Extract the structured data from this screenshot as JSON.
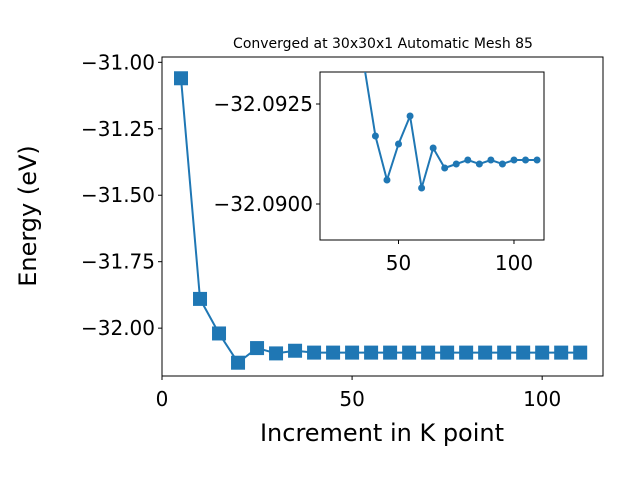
{
  "chart_data": [
    {
      "type": "line",
      "title": "Converged at 30x30x1 Automatic Mesh 85",
      "xlabel": "Increment in K point",
      "ylabel": "Energy (eV)",
      "xlim": [
        0,
        116
      ],
      "ylim": [
        -32.18,
        -30.98
      ],
      "xticks": [
        0,
        50,
        100
      ],
      "xtick_labels": [
        "0",
        "50",
        "100"
      ],
      "yticks": [
        -31.0,
        -31.25,
        -31.5,
        -31.75,
        -32.0
      ],
      "ytick_labels": [
        "−31.00",
        "−31.25",
        "−31.50",
        "−31.75",
        "−32.00"
      ],
      "grid": false,
      "marker": "square",
      "color": "#1f77b4",
      "x": [
        5,
        10,
        15,
        20,
        25,
        30,
        35,
        40,
        45,
        50,
        55,
        60,
        65,
        70,
        75,
        80,
        85,
        90,
        95,
        100,
        105,
        110
      ],
      "y": [
        -31.06,
        -31.89,
        -32.02,
        -32.13,
        -32.075,
        -32.095,
        -32.085,
        -32.092,
        -32.092,
        -32.092,
        -32.092,
        -32.092,
        -32.092,
        -32.092,
        -32.092,
        -32.092,
        -32.092,
        -32.092,
        -32.092,
        -32.092,
        -32.092,
        -32.092
      ]
    },
    {
      "type": "line",
      "title": "",
      "xlabel": "",
      "ylabel": "",
      "xlim": [
        16,
        113
      ],
      "ylim": [
        -32.0891,
        -32.0933
      ],
      "xticks": [
        50,
        100
      ],
      "xtick_labels": [
        "50",
        "100"
      ],
      "yticks": [
        -32.0925,
        -32.09
      ],
      "ytick_labels": [
        "−32.0925",
        "−32.0900"
      ],
      "grid": false,
      "marker": "circle",
      "color": "#1f77b4",
      "x": [
        35,
        40,
        45,
        50,
        55,
        60,
        65,
        70,
        75,
        80,
        85,
        90,
        95,
        100,
        105,
        110
      ],
      "y": [
        -32.0935,
        -32.0917,
        -32.0906,
        -32.0915,
        -32.0922,
        -32.0904,
        -32.0914,
        -32.0909,
        -32.091,
        -32.0911,
        -32.091,
        -32.0911,
        -32.091,
        -32.0911,
        -32.0911,
        -32.0911
      ]
    }
  ]
}
